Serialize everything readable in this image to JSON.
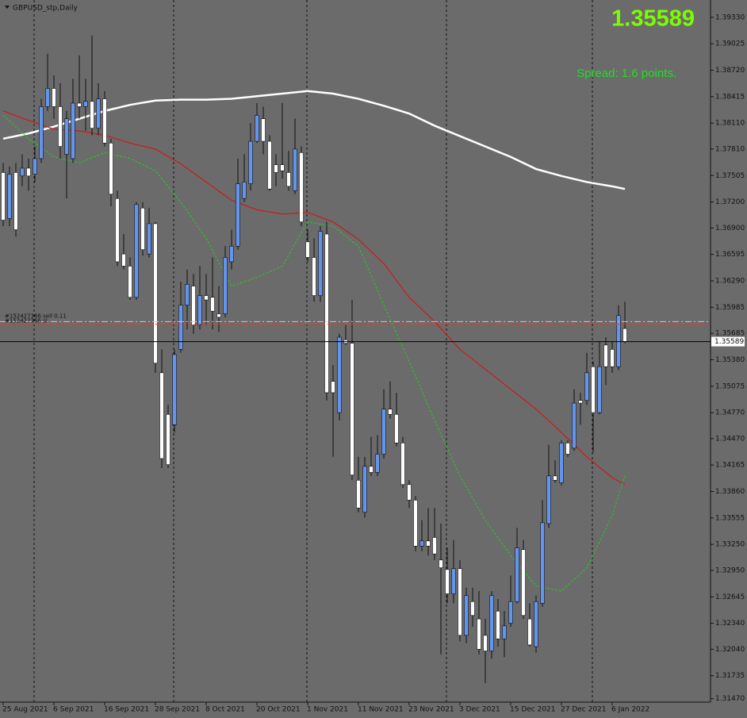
{
  "chart_data": {
    "type": "candlestick",
    "title": "GBPUSD_stp,Daily",
    "price": 1.35589,
    "spread_text": "Spread: 1.6 points.",
    "up_color": "#6495ed",
    "down_color": "#ffffff",
    "price_line_color": "#000000",
    "categories": [
      "25 Aug 2021",
      null,
      null,
      null,
      null,
      null,
      null,
      null,
      "6 Sep 2021",
      null,
      null,
      null,
      null,
      null,
      null,
      null,
      "16 Sep 2021",
      null,
      null,
      null,
      null,
      null,
      null,
      null,
      "28 Sep 2021",
      null,
      null,
      null,
      null,
      null,
      null,
      null,
      "8 Oct 2021",
      null,
      null,
      null,
      null,
      null,
      null,
      null,
      "20 Oct 2021",
      null,
      null,
      null,
      null,
      null,
      null,
      null,
      "1 Nov 2021",
      null,
      null,
      null,
      null,
      null,
      null,
      null,
      "11 Nov 2021",
      null,
      null,
      null,
      null,
      null,
      null,
      null,
      "23 Nov 2021",
      null,
      null,
      null,
      null,
      null,
      null,
      null,
      "3 Dec 2021",
      null,
      null,
      null,
      null,
      null,
      null,
      null,
      "15 Dec 2021",
      null,
      null,
      null,
      null,
      null,
      null,
      null,
      "27 Dec 2021",
      null,
      null,
      null,
      null,
      null,
      null,
      null,
      "6 Jan 2022",
      null,
      null
    ],
    "open": [
      1.3754,
      1.3701,
      1.3754,
      1.375,
      1.3759,
      1.3752,
      1.377,
      1.383,
      1.3851,
      1.383,
      1.3775,
      1.377,
      1.3834,
      1.383,
      1.3836,
      1.3805,
      1.3839,
      1.3788,
      1.3724,
      1.366,
      1.3646,
      1.361,
      1.3713,
      1.366,
      1.3695,
      1.3523,
      1.3475,
      1.3463,
      1.355,
      1.3601,
      1.3623,
      1.3578,
      1.3612,
      1.361,
      1.3591,
      1.3591,
      1.3651,
      1.3669,
      1.3724,
      1.3741,
      1.379,
      1.3816,
      1.379,
      1.3763,
      1.3763,
      1.3754,
      1.3733,
      1.3777,
      1.3674,
      1.3656,
      1.3612,
      1.3683,
      1.3513,
      1.3477,
      1.3561,
      1.3557,
      1.3399,
      1.3362,
      1.3415,
      1.3408,
      1.3429,
      1.3481,
      1.3475,
      1.3442,
      1.3394,
      1.3376,
      1.3323,
      1.3329,
      1.3333,
      1.3307,
      1.3296,
      1.3268,
      1.3297,
      1.322,
      1.3259,
      1.3239,
      1.322,
      1.3202,
      1.3248,
      1.3216,
      1.3234,
      1.3259,
      1.3319,
      1.3239,
      1.3207,
      1.3257,
      1.3349,
      1.3404,
      1.3396,
      1.3442,
      1.3436,
      1.3491,
      1.3491,
      1.353,
      1.3477,
      1.3555,
      1.355,
      1.353,
      1.3574
    ],
    "high": [
      1.3765,
      1.3761,
      1.3765,
      1.3775,
      1.377,
      1.3784,
      1.3839,
      1.3891,
      1.3866,
      1.3857,
      1.3825,
      1.3862,
      1.3889,
      1.3862,
      1.3912,
      1.3857,
      1.3848,
      1.3793,
      1.3733,
      1.3683,
      1.3656,
      1.372,
      1.372,
      1.3713,
      1.3697,
      1.355,
      1.3486,
      1.355,
      1.3628,
      1.3642,
      1.3637,
      1.3646,
      1.3637,
      1.3656,
      1.3623,
      1.3669,
      1.3688,
      1.377,
      1.3775,
      1.3811,
      1.3834,
      1.383,
      1.3797,
      1.3775,
      1.3834,
      1.3779,
      1.3816,
      1.3784,
      1.3688,
      1.3678,
      1.3692,
      1.3697,
      1.3532,
      1.3568,
      1.3578,
      1.3607,
      1.3426,
      1.3426,
      1.3449,
      1.3451,
      1.3504,
      1.3513,
      1.35,
      1.3449,
      1.3399,
      1.3381,
      1.3353,
      1.3367,
      1.3367,
      1.3349,
      1.3321,
      1.333,
      1.3307,
      1.3275,
      1.3275,
      1.3271,
      1.3239,
      1.3271,
      1.3262,
      1.3248,
      1.3289,
      1.3344,
      1.333,
      1.3257,
      1.3266,
      1.3376,
      1.344,
      1.3422,
      1.3445,
      1.3445,
      1.3504,
      1.35,
      1.3546,
      1.3536,
      1.3559,
      1.3564,
      1.3559,
      1.3601,
      1.3605
    ],
    "low": [
      1.3692,
      1.3692,
      1.368,
      1.3738,
      1.3733,
      1.3743,
      1.3765,
      1.3825,
      1.3816,
      1.377,
      1.3724,
      1.3765,
      1.3816,
      1.3802,
      1.3797,
      1.3797,
      1.3784,
      1.3715,
      1.3646,
      1.3642,
      1.3607,
      1.3607,
      1.3658,
      1.3656,
      1.3523,
      1.3413,
      1.3413,
      1.3454,
      1.3546,
      1.3573,
      1.3568,
      1.3573,
      1.3578,
      1.3573,
      1.357,
      1.3587,
      1.3642,
      1.3665,
      1.372,
      1.3733,
      1.3788,
      1.3775,
      1.3733,
      1.3738,
      1.3747,
      1.3733,
      1.3729,
      1.3692,
      1.3651,
      1.3605,
      1.3605,
      1.3491,
      1.3426,
      1.3468,
      1.3555,
      1.3399,
      1.3362,
      1.3356,
      1.3404,
      1.3404,
      1.3424,
      1.347,
      1.3438,
      1.339,
      1.3367,
      1.3317,
      1.3317,
      1.3312,
      1.3307,
      1.3198,
      1.3257,
      1.3257,
      1.3213,
      1.3211,
      1.323,
      1.3198,
      1.3165,
      1.3193,
      1.3207,
      1.3195,
      1.323,
      1.3257,
      1.3239,
      1.3207,
      1.32,
      1.3253,
      1.3344,
      1.3396,
      1.3393,
      1.3426,
      1.3433,
      1.3463,
      1.3486,
      1.3431,
      1.3475,
      1.3509,
      1.3523,
      1.3526,
      1.3557
    ],
    "close": [
      1.3699,
      1.3752,
      1.3688,
      1.3759,
      1.375,
      1.377,
      1.383,
      1.3851,
      1.383,
      1.3784,
      1.3816,
      1.3834,
      1.383,
      1.3836,
      1.3805,
      1.3839,
      1.3788,
      1.3729,
      1.3651,
      1.3646,
      1.361,
      1.3717,
      1.3665,
      1.3695,
      1.3534,
      1.3424,
      1.3417,
      1.3544,
      1.3601,
      1.3625,
      1.3578,
      1.3612,
      1.3607,
      1.3594,
      1.3587,
      1.3656,
      1.3669,
      1.3741,
      1.3743,
      1.379,
      1.382,
      1.379,
      1.3735,
      1.3754,
      1.3756,
      1.3738,
      1.3781,
      1.3697,
      1.3656,
      1.3612,
      1.3686,
      1.35,
      1.35,
      1.3564,
      1.3557,
      1.3405,
      1.3367,
      1.3415,
      1.3408,
      1.3429,
      1.3481,
      1.3475,
      1.3442,
      1.3394,
      1.3376,
      1.3323,
      1.3329,
      1.3323,
      1.3314,
      1.3298,
      1.3268,
      1.3297,
      1.322,
      1.3266,
      1.3243,
      1.3204,
      1.3202,
      1.3266,
      1.3216,
      1.3231,
      1.3259,
      1.3321,
      1.3243,
      1.3209,
      1.3259,
      1.335,
      1.3404,
      1.3399,
      1.3442,
      1.3429,
      1.3488,
      1.3488,
      1.3523,
      1.3477,
      1.353,
      1.353,
      1.353,
      1.3589,
      1.3559
    ],
    "series": [
      {
        "color": "#ffffff",
        "dashed": false,
        "x": [
          0,
          4,
          8,
          12,
          16,
          20,
          24,
          28,
          32,
          36,
          40,
          44,
          48,
          52,
          56,
          60,
          64,
          68,
          72,
          76,
          80,
          84,
          88,
          92,
          96,
          98
        ],
        "values": [
          1.3793,
          1.3799,
          1.3807,
          1.3816,
          1.3825,
          1.3832,
          1.3837,
          1.3838,
          1.3838,
          1.3839,
          1.3842,
          1.3845,
          1.3848,
          1.3845,
          1.3839,
          1.3831,
          1.3822,
          1.3808,
          1.3796,
          1.3784,
          1.3772,
          1.3758,
          1.375,
          1.3743,
          1.3738,
          1.3735
        ]
      },
      {
        "color": "#d01818",
        "dashed": false,
        "x": [
          0,
          4,
          8,
          12,
          16,
          20,
          24,
          28,
          32,
          36,
          40,
          44,
          48,
          52,
          56,
          60,
          64,
          68,
          72,
          76,
          80,
          84,
          88,
          92,
          96,
          98
        ],
        "values": [
          1.3825,
          1.3814,
          1.3804,
          1.3802,
          1.3797,
          1.3788,
          1.3781,
          1.3764,
          1.3743,
          1.3722,
          1.3711,
          1.3706,
          1.3708,
          1.3697,
          1.3677,
          1.3649,
          1.361,
          1.3582,
          1.355,
          1.3527,
          1.3504,
          1.3481,
          1.3454,
          1.3426,
          1.3402,
          1.3394
        ]
      },
      {
        "color": "#22cc22",
        "dashed": true,
        "x": [
          0,
          4,
          8,
          12,
          16,
          20,
          24,
          28,
          32,
          36,
          40,
          44,
          48,
          52,
          56,
          60,
          64,
          68,
          72,
          76,
          80,
          84,
          88,
          92,
          96,
          98
        ],
        "values": [
          1.382,
          1.3793,
          1.3772,
          1.3765,
          1.3777,
          1.377,
          1.3756,
          1.372,
          1.3678,
          1.3623,
          1.3633,
          1.3646,
          1.3697,
          1.3692,
          1.3669,
          1.3601,
          1.3536,
          1.3468,
          1.3404,
          1.3353,
          1.3312,
          1.3277,
          1.3271,
          1.3298,
          1.3358,
          1.3404
        ]
      }
    ],
    "orders": [
      {
        "label": "#152427366 sell 0.11",
        "price": 1.3582,
        "color": "#c8c8c8"
      },
      {
        "label": "#152427366 sl",
        "price": 1.3579,
        "color": "#ff3030"
      }
    ],
    "ylim": [
      1.3143,
      1.3953
    ],
    "yticks": [
      {
        "value": 1.3933,
        "label": "1.39330"
      },
      1.39025,
      {
        "value": 1.3872,
        "label": "1.38720"
      },
      1.38415,
      {
        "value": 1.3811,
        "label": "1.38110"
      },
      {
        "value": 1.3781,
        "label": "1.37810"
      },
      1.37505,
      {
        "value": 1.372,
        "label": "1.37200"
      },
      {
        "value": 1.369,
        "label": "1.36900"
      },
      1.36595,
      {
        "value": 1.3629,
        "label": "1.36290"
      },
      1.35985,
      1.35685,
      {
        "value": 1.3538,
        "label": "1.35380"
      },
      1.35075,
      {
        "value": 1.3477,
        "label": "1.34770"
      },
      {
        "value": 1.3447,
        "label": "1.34470"
      },
      1.34165,
      {
        "value": 1.3386,
        "label": "1.33860"
      },
      1.33555,
      {
        "value": 1.3325,
        "label": "1.33250"
      },
      {
        "value": 1.3295,
        "label": "1.32950"
      },
      1.32645,
      {
        "value": 1.3234,
        "label": "1.32340"
      },
      {
        "value": 1.3204,
        "label": "1.32040"
      },
      1.31735,
      {
        "value": 1.3147,
        "label": "1.31470"
      }
    ]
  }
}
